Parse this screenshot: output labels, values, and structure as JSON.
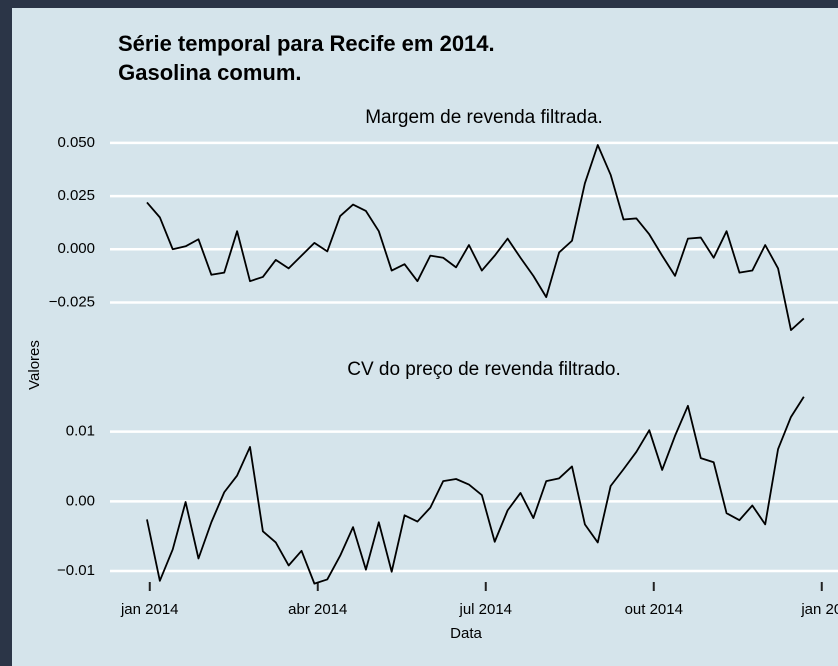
{
  "title": [
    "Série temporal para Recife em 2014.",
    " Gasolina comum."
  ],
  "x_label": "Data",
  "y_label": "Valores",
  "chart_data": [
    {
      "type": "line",
      "subtitle": "Margem de revenda filtrada.",
      "x": [
        -0.05,
        0.18,
        0.41,
        0.64,
        0.87,
        1.1,
        1.33,
        1.56,
        1.79,
        2.02,
        2.25,
        2.48,
        2.71,
        2.94,
        3.17,
        3.4,
        3.63,
        3.86,
        4.09,
        4.32,
        4.55,
        4.78,
        5.01,
        5.24,
        5.47,
        5.7,
        5.93,
        6.16,
        6.39,
        6.62,
        6.85,
        7.08,
        7.31,
        7.54,
        7.77,
        8.0,
        8.23,
        8.46,
        8.69,
        8.92,
        9.15,
        9.38,
        9.61,
        9.84,
        10.07,
        10.3,
        10.53,
        10.76,
        10.99,
        11.22,
        11.45,
        11.68
      ],
      "xlim": [
        -0.71,
        12.29
      ],
      "ylim": [
        -0.045,
        0.057
      ],
      "yticks": [
        {
          "value": -0.025,
          "label": "−0.025"
        },
        {
          "value": 0,
          "label": "0.000"
        },
        {
          "value": 0.025,
          "label": "0.025"
        },
        {
          "value": 0.05,
          "label": "0.050"
        }
      ],
      "grid": true,
      "series": [
        {
          "color": "#000000",
          "values": [
            0.022,
            0.015,
            0.0,
            0.0014,
            0.0047,
            -0.012,
            -0.011,
            0.0085,
            -0.015,
            -0.013,
            -0.005,
            -0.009,
            -0.003,
            0.003,
            -0.001,
            0.0156,
            0.021,
            0.018,
            0.0085,
            -0.01,
            -0.007,
            -0.015,
            -0.003,
            -0.004,
            -0.0085,
            0.002,
            -0.01,
            -0.003,
            0.005,
            -0.004,
            -0.0125,
            -0.0225,
            -0.0015,
            0.004,
            0.031,
            0.049,
            0.035,
            0.014,
            0.0145,
            0.007,
            -0.003,
            -0.0125,
            0.005,
            0.0055,
            -0.004,
            0.0085,
            -0.011,
            -0.01,
            0.002,
            -0.009,
            -0.038,
            -0.0325
          ]
        }
      ]
    },
    {
      "type": "line",
      "subtitle": "CV do preço de revenda filtrado.",
      "x": [
        -0.05,
        0.18,
        0.41,
        0.64,
        0.87,
        1.1,
        1.33,
        1.56,
        1.79,
        2.02,
        2.25,
        2.48,
        2.71,
        2.94,
        3.17,
        3.4,
        3.63,
        3.86,
        4.09,
        4.32,
        4.55,
        4.78,
        5.01,
        5.24,
        5.47,
        5.7,
        5.93,
        6.16,
        6.39,
        6.62,
        6.85,
        7.08,
        7.31,
        7.54,
        7.77,
        8.0,
        8.23,
        8.46,
        8.69,
        8.92,
        9.15,
        9.38,
        9.61,
        9.84,
        10.07,
        10.3,
        10.53,
        10.76,
        10.99,
        11.22,
        11.45,
        11.68
      ],
      "xlim": [
        -0.71,
        12.29
      ],
      "xticks": [
        {
          "value": 0,
          "label": "jan 2014"
        },
        {
          "value": 3,
          "label": "abr 2014"
        },
        {
          "value": 6,
          "label": "jul 2014"
        },
        {
          "value": 9,
          "label": "out 2014"
        },
        {
          "value": 12,
          "label": "jan 20"
        }
      ],
      "ylim": [
        -0.012,
        0.0174
      ],
      "yticks": [
        {
          "value": -0.01,
          "label": "−0.01"
        },
        {
          "value": 0,
          "label": "0.00"
        },
        {
          "value": 0.01,
          "label": "0.01"
        }
      ],
      "grid": true,
      "series": [
        {
          "color": "#000000",
          "values": [
            -0.0026,
            -0.0114,
            -0.0069,
            -0.0001,
            -0.0082,
            -0.003,
            0.0013,
            0.0037,
            0.0078,
            -0.0043,
            -0.0059,
            -0.0092,
            -0.0071,
            -0.0118,
            -0.0112,
            -0.0078,
            -0.0037,
            -0.0098,
            -0.003,
            -0.0101,
            -0.002,
            -0.0029,
            -0.0009,
            0.0029,
            0.0032,
            0.0024,
            0.0009,
            -0.0058,
            -0.0013,
            0.0012,
            -0.0024,
            0.0029,
            0.0033,
            0.005,
            -0.0033,
            -0.0059,
            0.0022,
            0.0046,
            0.0071,
            0.0102,
            0.0045,
            0.0094,
            0.0137,
            0.0062,
            0.0056,
            -0.0017,
            -0.0027,
            -0.0006,
            -0.0033,
            0.0075,
            0.0121,
            0.015
          ]
        }
      ]
    }
  ]
}
